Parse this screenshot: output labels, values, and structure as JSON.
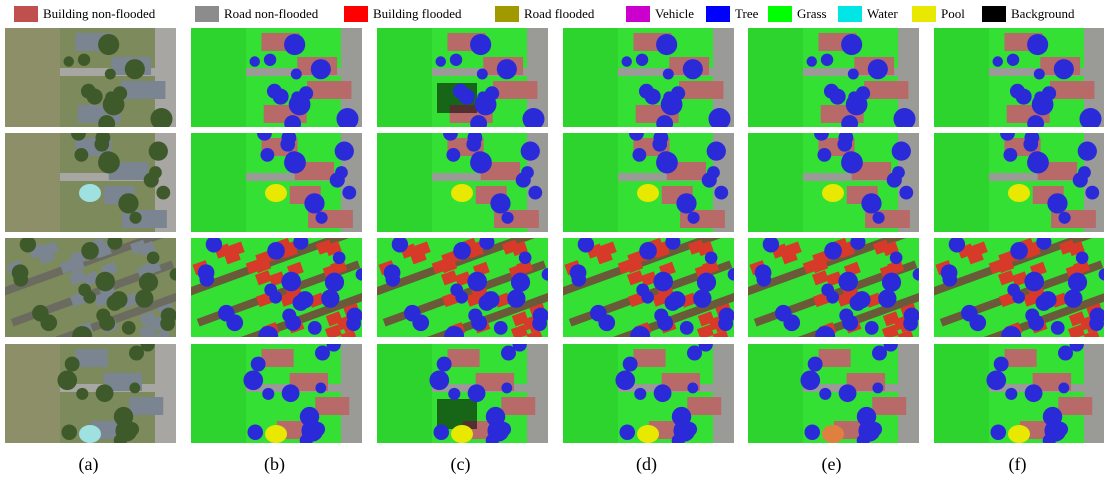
{
  "legend": [
    {
      "label": "Building non-flooded",
      "color": "#c0504d"
    },
    {
      "label": "Road non-flooded",
      "color": "#8c8c8c"
    },
    {
      "label": "Building flooded",
      "color": "#ff0000"
    },
    {
      "label": "Road flooded",
      "color": "#a09a00"
    },
    {
      "label": "Vehicle",
      "color": "#cc00cc"
    },
    {
      "label": "Tree",
      "color": "#0000ff"
    },
    {
      "label": "Grass",
      "color": "#00ff00"
    },
    {
      "label": "Water",
      "color": "#00e5e5"
    },
    {
      "label": "Pool",
      "color": "#e8e800"
    },
    {
      "label": "Background",
      "color": "#000000"
    }
  ],
  "columns": [
    {
      "label": "(a)"
    },
    {
      "label": "(b)"
    },
    {
      "label": "(c)"
    },
    {
      "label": "(d)"
    },
    {
      "label": "(e)"
    },
    {
      "label": "(f)"
    }
  ]
}
